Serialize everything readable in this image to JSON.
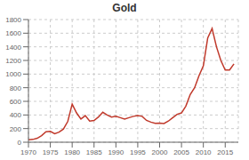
{
  "chart_data": {
    "type": "line",
    "title": "Gold",
    "x": [
      1970,
      1971,
      1972,
      1973,
      1974,
      1975,
      1976,
      1977,
      1978,
      1979,
      1980,
      1981,
      1982,
      1983,
      1984,
      1985,
      1986,
      1987,
      1988,
      1989,
      1990,
      1991,
      1992,
      1993,
      1994,
      1995,
      1996,
      1997,
      1998,
      1999,
      2000,
      2001,
      2002,
      2003,
      2004,
      2005,
      2006,
      2007,
      2008,
      2009,
      2010,
      2011,
      2012,
      2013,
      2014,
      2015,
      2016,
      2017
    ],
    "values": [
      36,
      41,
      58,
      97,
      154,
      160,
      125,
      148,
      193,
      306,
      560,
      430,
      340,
      390,
      310,
      320,
      370,
      440,
      400,
      370,
      380,
      360,
      340,
      360,
      380,
      390,
      380,
      320,
      295,
      278,
      280,
      275,
      310,
      360,
      410,
      430,
      530,
      700,
      800,
      975,
      1120,
      1530,
      1670,
      1400,
      1200,
      1060,
      1060,
      1150
    ],
    "color": "#c0392b",
    "xlim": [
      1970,
      2018
    ],
    "ylim": [
      0,
      1800
    ],
    "xticks": [
      1970,
      1975,
      1980,
      1985,
      1990,
      1995,
      2000,
      2005,
      2010,
      2015
    ],
    "yticks": [
      0,
      200,
      400,
      600,
      800,
      1000,
      1200,
      1400,
      1600,
      1800
    ],
    "grid": true
  }
}
